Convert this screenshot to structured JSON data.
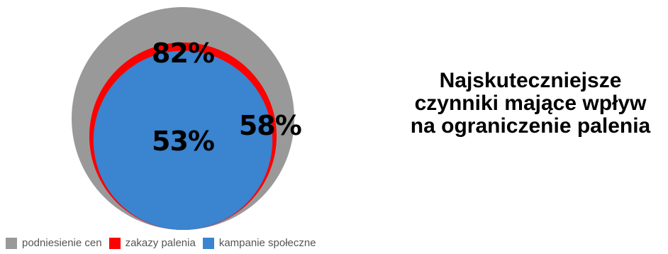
{
  "chart_data": {
    "type": "nested-area",
    "title": "Najskuteczniejsze czynniki mające wpływ na ograniczenie palenia",
    "series": [
      {
        "name": "podniesienie cen",
        "value": 82,
        "label": "82%",
        "color": "#999999"
      },
      {
        "name": "zakazy palenia",
        "value": 58,
        "label": "58%",
        "color": "#ff0000"
      },
      {
        "name": "kampanie społeczne",
        "value": 53,
        "label": "53%",
        "color": "#3a84d0"
      }
    ],
    "legend_position": "bottom-left"
  }
}
